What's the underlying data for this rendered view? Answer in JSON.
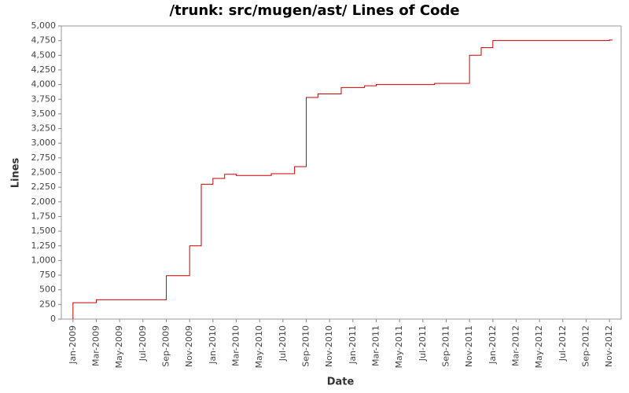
{
  "chart_data": {
    "type": "step-line",
    "title": "/trunk: src/mugen/ast/ Lines of Code",
    "x_label": "Date",
    "y_label": "Lines",
    "series": [
      {
        "name": "Lines of Code",
        "color": "#cc0000",
        "x": [
          "2009-01",
          "2009-01",
          "2009-03",
          "2009-09",
          "2009-09",
          "2009-11",
          "2009-11",
          "2009-11",
          "2009-12",
          "2009-12",
          "2009-12",
          "2010-01",
          "2010-01",
          "2010-02",
          "2010-03",
          "2010-06",
          "2010-08",
          "2010-09",
          "2010-09",
          "2010-10",
          "2010-10",
          "2010-12",
          "2011-02",
          "2011-03",
          "2011-08",
          "2011-11",
          "2011-12",
          "2011-12",
          "2012-01",
          "2012-11"
        ],
        "values": [
          0,
          280,
          330,
          650,
          740,
          870,
          1230,
          1250,
          1480,
          1620,
          2300,
          2380,
          2400,
          2470,
          2450,
          2480,
          2600,
          2730,
          3780,
          3830,
          3840,
          3950,
          3980,
          4000,
          4020,
          4500,
          4540,
          4630,
          4750,
          4760
        ]
      }
    ],
    "xlim": [
      "2008-12",
      "2012-12"
    ],
    "xticks": [
      {
        "value": "2009-01",
        "label": "Jan-2009"
      },
      {
        "value": "2009-03",
        "label": "Mar-2009"
      },
      {
        "value": "2009-05",
        "label": "May-2009"
      },
      {
        "value": "2009-07",
        "label": "Jul-2009"
      },
      {
        "value": "2009-09",
        "label": "Sep-2009"
      },
      {
        "value": "2009-11",
        "label": "Nov-2009"
      },
      {
        "value": "2010-01",
        "label": "Jan-2010"
      },
      {
        "value": "2010-03",
        "label": "Mar-2010"
      },
      {
        "value": "2010-05",
        "label": "May-2010"
      },
      {
        "value": "2010-07",
        "label": "Jul-2010"
      },
      {
        "value": "2010-09",
        "label": "Sep-2010"
      },
      {
        "value": "2010-11",
        "label": "Nov-2010"
      },
      {
        "value": "2011-01",
        "label": "Jan-2011"
      },
      {
        "value": "2011-03",
        "label": "Mar-2011"
      },
      {
        "value": "2011-05",
        "label": "May-2011"
      },
      {
        "value": "2011-07",
        "label": "Jul-2011"
      },
      {
        "value": "2011-09",
        "label": "Sep-2011"
      },
      {
        "value": "2011-11",
        "label": "Nov-2011"
      },
      {
        "value": "2012-01",
        "label": "Jan-2012"
      },
      {
        "value": "2012-03",
        "label": "Mar-2012"
      },
      {
        "value": "2012-05",
        "label": "May-2012"
      },
      {
        "value": "2012-07",
        "label": "Jul-2012"
      },
      {
        "value": "2012-09",
        "label": "Sep-2012"
      },
      {
        "value": "2012-11",
        "label": "Nov-2012"
      }
    ],
    "ylim": [
      0,
      5000
    ],
    "yticks": [
      0,
      250,
      500,
      750,
      {
        "value": 1000,
        "label": "1,000"
      },
      {
        "value": 1250,
        "label": "1,250"
      },
      {
        "value": 1500,
        "label": "1,500"
      },
      {
        "value": 1750,
        "label": "1,750"
      },
      {
        "value": 2000,
        "label": "2,000"
      },
      {
        "value": 2250,
        "label": "2,250"
      },
      {
        "value": 2500,
        "label": "2,500"
      },
      {
        "value": 2750,
        "label": "2,750"
      },
      {
        "value": 3000,
        "label": "3,000"
      },
      {
        "value": 3250,
        "label": "3,250"
      },
      {
        "value": 3500,
        "label": "3,500"
      },
      {
        "value": 3750,
        "label": "3,750"
      },
      {
        "value": 4000,
        "label": "4,000"
      },
      {
        "value": 4250,
        "label": "4,250"
      },
      {
        "value": 4500,
        "label": "4,500"
      },
      {
        "value": 4750,
        "label": "4,750"
      },
      {
        "value": 5000,
        "label": "5,000"
      }
    ],
    "grid": false
  }
}
